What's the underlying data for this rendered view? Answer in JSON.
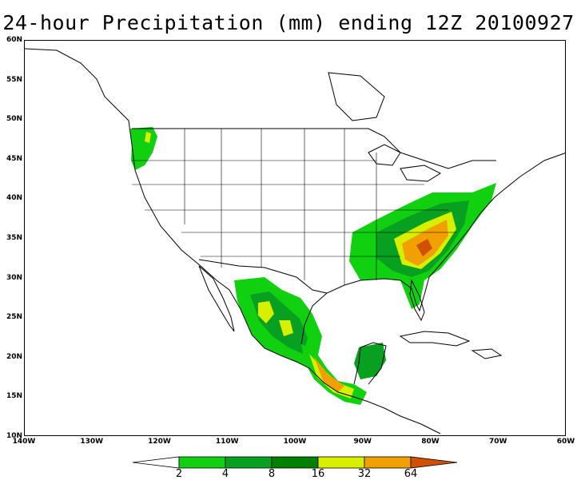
{
  "title": "24-hour Precipitation (mm) ending 12Z 20100927",
  "lat_labels": [
    "60N",
    "55N",
    "50N",
    "45N",
    "40N",
    "35N",
    "30N",
    "25N",
    "20N",
    "15N",
    "10N"
  ],
  "lon_labels": [
    "140W",
    "130W",
    "120W",
    "110W",
    "100W",
    "90W",
    "80W",
    "70W",
    "60W"
  ],
  "legend": {
    "thresholds": [
      "2",
      "4",
      "8",
      "16",
      "32",
      "64"
    ],
    "colors": [
      "#ffffff",
      "#10d010",
      "#08a020",
      "#008000",
      "#d8f000",
      "#f0a000",
      "#d05000"
    ]
  },
  "colors": {
    "land_border": "#000000",
    "level_2": "#10d010",
    "level_4": "#08a020",
    "level_8": "#008000",
    "level_16": "#d8f000",
    "level_32": "#f0a000",
    "level_64": "#d05000"
  }
}
